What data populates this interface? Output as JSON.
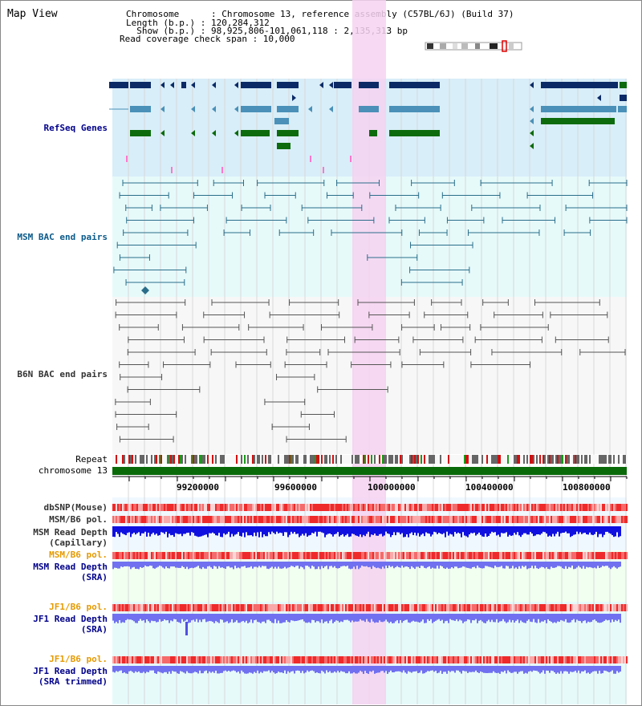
{
  "header": {
    "title": "Map View",
    "info_lines": [
      "Chromosome      : Chromosome 13, reference assembly (C57BL/6J) (Build 37)",
      "Length (b.p.) : 120,284,312",
      "  Show (b.p.) : 98,925,806-101,061,118 : 2,135,313 bp",
      "Read coverage check span : 10,000"
    ]
  },
  "tracks": {
    "refseq": "RefSeq Genes",
    "msm_bac": "MSM BAC end pairs",
    "b6n_bac": "B6N BAC end pairs",
    "repeat": "Repeat",
    "chromosome": "chromosome 13",
    "dbsnp": "dbSNP(Mouse)",
    "msm_b6_pol_1": "MSM/B6 pol.",
    "msm_depth_cap_1": "MSM Read Depth",
    "msm_depth_cap_2": "(Capillary)",
    "msm_b6_pol_2": "MSM/B6 pol.",
    "msm_depth_sra_1": "MSM Read Depth",
    "msm_depth_sra_2": "(SRA)",
    "jf1_b6_pol_1": "JF1/B6 pol.",
    "jf1_depth_sra_1": "JF1 Read Depth",
    "jf1_depth_sra_2": "(SRA)",
    "jf1_b6_pol_2": "JF1/B6 pol.",
    "jf1_depth_trim_1": "JF1 Read Depth",
    "jf1_depth_trim_2": "(SRA trimmed)"
  },
  "axis": {
    "ticks": [
      "99200000",
      "99600000",
      "100000000",
      "100400000",
      "100800000"
    ]
  },
  "colors": {
    "refseq_bg": "#d8eef9",
    "bac_bg": "#e6fafa",
    "highlight": "#f6d2f1",
    "gene_dark": "#0b2a66",
    "gene_mid": "#4a90b8",
    "gene_green": "#0d6b0d",
    "msm_line": "#2a6d8a",
    "b6n_line": "#555555",
    "chrom": "#0a6a0a",
    "depth_blue": "#1010e0",
    "depth_light": "#7070f0"
  }
}
